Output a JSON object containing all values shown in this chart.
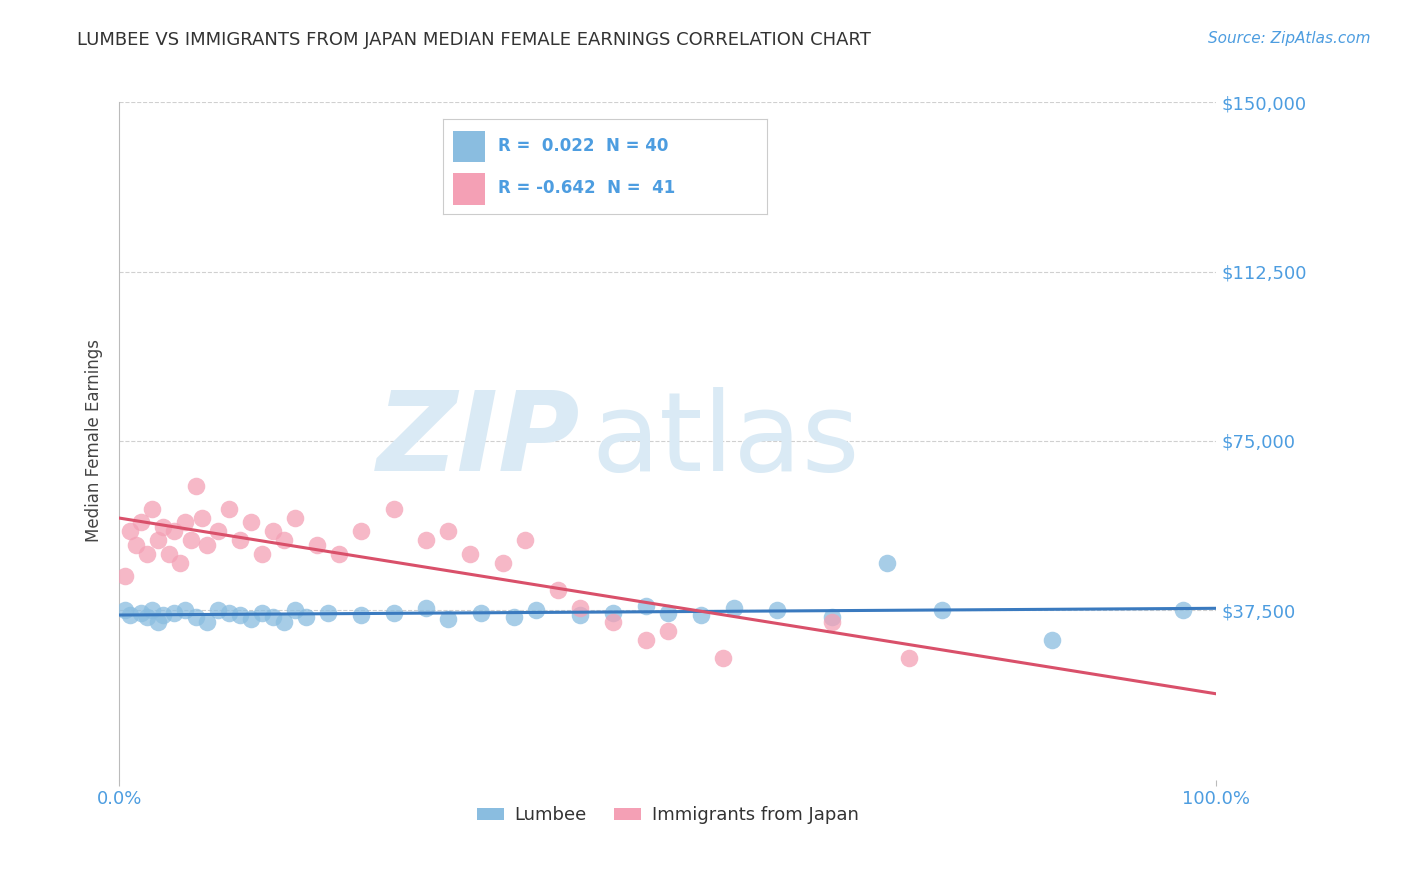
{
  "title": "LUMBEE VS IMMIGRANTS FROM JAPAN MEDIAN FEMALE EARNINGS CORRELATION CHART",
  "source_text": "Source: ZipAtlas.com",
  "ylabel": "Median Female Earnings",
  "xlim": [
    0.0,
    1.0
  ],
  "ylim": [
    0,
    150000
  ],
  "yticks": [
    0,
    37500,
    75000,
    112500,
    150000
  ],
  "ytick_labels": [
    "",
    "$37,500",
    "$75,000",
    "$112,500",
    "$150,000"
  ],
  "legend_blue_r": "0.022",
  "legend_blue_n": "40",
  "legend_pink_r": "-0.642",
  "legend_pink_n": "41",
  "blue_color": "#8abde0",
  "pink_color": "#f4a0b5",
  "blue_line_color": "#3a7abf",
  "pink_line_color": "#d9506a",
  "axis_color": "#4d9de0",
  "grid_color": "#d0d0d0",
  "title_color": "#333333",
  "watermark_zip": "ZIP",
  "watermark_atlas": "atlas",
  "watermark_color": "#daeaf5",
  "blue_x": [
    0.005,
    0.01,
    0.02,
    0.025,
    0.03,
    0.035,
    0.04,
    0.05,
    0.06,
    0.07,
    0.08,
    0.09,
    0.1,
    0.11,
    0.12,
    0.13,
    0.14,
    0.15,
    0.16,
    0.17,
    0.19,
    0.22,
    0.25,
    0.28,
    0.3,
    0.33,
    0.36,
    0.38,
    0.42,
    0.45,
    0.48,
    0.5,
    0.53,
    0.56,
    0.6,
    0.65,
    0.7,
    0.75,
    0.85,
    0.97
  ],
  "blue_y": [
    37500,
    36500,
    37000,
    36000,
    37500,
    35000,
    36500,
    37000,
    37500,
    36000,
    35000,
    37500,
    37000,
    36500,
    35500,
    37000,
    36000,
    35000,
    37500,
    36000,
    37000,
    36500,
    37000,
    38000,
    35500,
    37000,
    36000,
    37500,
    36500,
    37000,
    38500,
    37000,
    36500,
    38000,
    37500,
    36000,
    48000,
    37500,
    31000,
    37500
  ],
  "pink_x": [
    0.005,
    0.01,
    0.015,
    0.02,
    0.025,
    0.03,
    0.035,
    0.04,
    0.045,
    0.05,
    0.055,
    0.06,
    0.065,
    0.07,
    0.075,
    0.08,
    0.09,
    0.1,
    0.11,
    0.12,
    0.13,
    0.14,
    0.15,
    0.16,
    0.18,
    0.2,
    0.22,
    0.25,
    0.28,
    0.3,
    0.32,
    0.35,
    0.37,
    0.4,
    0.42,
    0.45,
    0.48,
    0.5,
    0.55,
    0.65,
    0.72
  ],
  "pink_y": [
    45000,
    55000,
    52000,
    57000,
    50000,
    60000,
    53000,
    56000,
    50000,
    55000,
    48000,
    57000,
    53000,
    65000,
    58000,
    52000,
    55000,
    60000,
    53000,
    57000,
    50000,
    55000,
    53000,
    58000,
    52000,
    50000,
    55000,
    60000,
    53000,
    55000,
    50000,
    48000,
    53000,
    42000,
    38000,
    35000,
    31000,
    33000,
    27000,
    35000,
    27000
  ]
}
